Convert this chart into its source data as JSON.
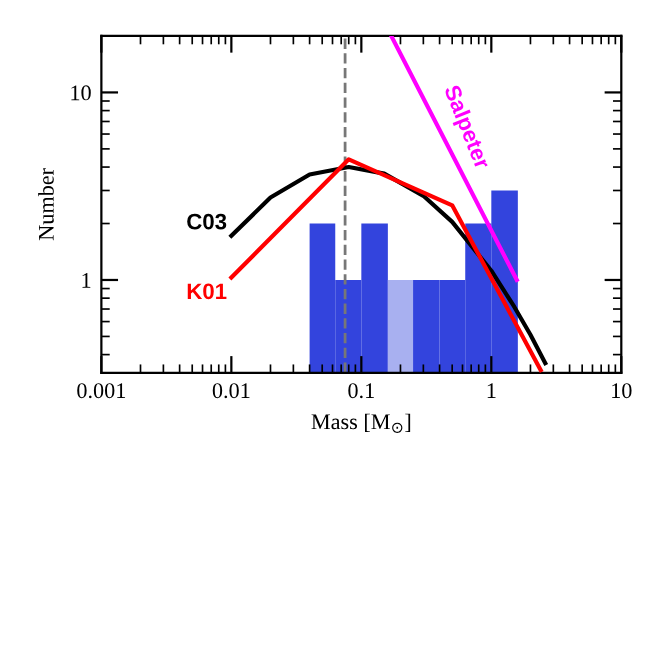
{
  "chart_data": {
    "type": "histogram",
    "xlabel": "Mass [M$_{⊙}$]",
    "ylabel": "Number",
    "log": "xy",
    "bins": [
      0.04,
      0.063,
      0.1,
      0.16,
      0.25,
      0.4,
      0.63,
      1,
      1.6
    ],
    "values": [
      2,
      1,
      2,
      1,
      1,
      1,
      2,
      3
    ],
    "colors": [
      "#3344dd",
      "#3344dd",
      "#3344dd",
      "#a8b0f0",
      "#3344dd",
      "#3344dd",
      "#3344dd",
      "#3344dd"
    ],
    "series": [
      {
        "name": "C03",
        "type": "line",
        "color": "#000000",
        "x": [
          0.01,
          0.02,
          0.04,
          0.08,
          0.15,
          0.3,
          0.5,
          1,
          1.5,
          2,
          2.6
        ],
        "values": [
          1.72,
          2.75,
          3.65,
          4.0,
          3.69,
          2.81,
          2.04,
          1.12,
          0.72,
          0.51,
          0.36
        ]
      },
      {
        "name": "K01",
        "type": "line",
        "color": "#ff0000",
        "x": [
          0.01,
          0.08,
          0.5,
          2.4
        ],
        "values": [
          1.03,
          4.4,
          2.5,
          0.33
        ]
      },
      {
        "name": "Salpeter",
        "type": "line",
        "color": "#ff00ff",
        "x": [
          0.17,
          1.57
        ],
        "values": [
          20,
          1
        ]
      }
    ],
    "ref_lines": [
      {
        "axis": "x",
        "value": 0.075,
        "color": "#777777",
        "line_style": "dashed"
      }
    ],
    "xlim": [
      0.001,
      10
    ],
    "ylim": [
      0.32,
      20
    ],
    "xticks": [
      0.001,
      0.01,
      0.1,
      1,
      10
    ],
    "yticks": [
      1,
      10
    ],
    "grid": false
  }
}
